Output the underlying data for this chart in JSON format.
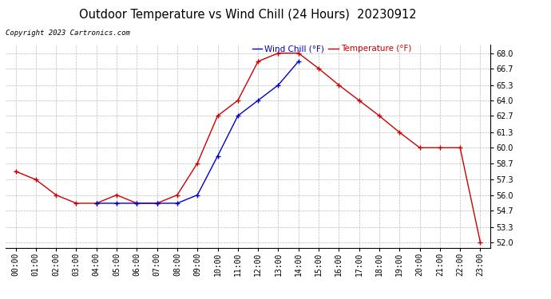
{
  "title": "Outdoor Temperature vs Wind Chill (24 Hours)  20230912",
  "copyright": "Copyright 2023 Cartronics.com",
  "legend_wind_chill": "Wind Chill (°F)",
  "legend_temperature": "Temperature (°F)",
  "hours": [
    "00:00",
    "01:00",
    "02:00",
    "03:00",
    "04:00",
    "05:00",
    "06:00",
    "07:00",
    "08:00",
    "09:00",
    "10:00",
    "11:00",
    "12:00",
    "13:00",
    "14:00",
    "15:00",
    "16:00",
    "17:00",
    "18:00",
    "19:00",
    "20:00",
    "21:00",
    "22:00",
    "23:00"
  ],
  "temperature": [
    58.0,
    57.3,
    56.0,
    55.3,
    55.3,
    56.0,
    55.3,
    55.3,
    56.0,
    58.7,
    62.7,
    64.0,
    67.3,
    68.0,
    68.0,
    66.7,
    65.3,
    64.0,
    62.7,
    61.3,
    60.0,
    60.0,
    60.0,
    52.0
  ],
  "wind_chill_hours": [
    4,
    5,
    6,
    7,
    8,
    9,
    10,
    11,
    12,
    13,
    14
  ],
  "wind_chill_vals": [
    55.3,
    55.3,
    55.3,
    55.3,
    55.3,
    56.0,
    59.3,
    62.7,
    64.0,
    65.3,
    67.3
  ],
  "ylim": [
    51.5,
    68.7
  ],
  "yticks": [
    52.0,
    53.3,
    54.7,
    56.0,
    57.3,
    58.7,
    60.0,
    61.3,
    62.7,
    64.0,
    65.3,
    66.7,
    68.0
  ],
  "temp_color": "#cc0000",
  "wind_color": "#0000cc",
  "bg_color": "#ffffff",
  "grid_color": "#bbbbbb",
  "title_color": "#000000",
  "copyright_color": "#000000",
  "title_fontsize": 10.5,
  "copyright_fontsize": 6.5,
  "tick_fontsize": 7,
  "legend_fontsize": 7.5
}
